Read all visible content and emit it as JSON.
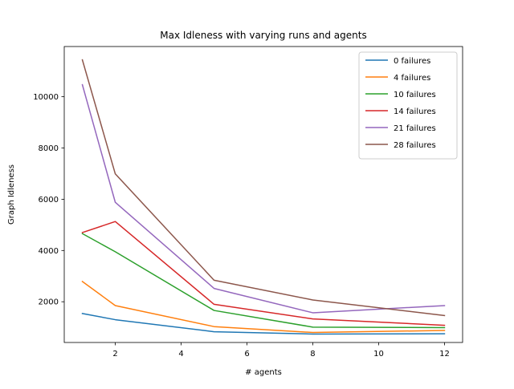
{
  "chart_data": {
    "type": "line",
    "title": "Max Idleness with varying runs and agents",
    "xlabel": "# agents",
    "ylabel": "Graph Idleness",
    "xlim": [
      0.45,
      12.55
    ],
    "ylim": [
      410,
      11960
    ],
    "x": [
      1,
      2,
      5,
      8,
      12
    ],
    "x_ticks": [
      2,
      4,
      6,
      8,
      10,
      12
    ],
    "y_ticks": [
      2000,
      4000,
      6000,
      8000,
      10000
    ],
    "grid": false,
    "legend_position": "upper right",
    "series": [
      {
        "name": "0 failures",
        "color": "#1f77b4",
        "values": [
          1540,
          1300,
          830,
          740,
          750
        ]
      },
      {
        "name": "4 failures",
        "color": "#ff7f0e",
        "values": [
          2790,
          1850,
          1030,
          800,
          880
        ]
      },
      {
        "name": "10 failures",
        "color": "#2ca02c",
        "values": [
          4660,
          3950,
          1660,
          1010,
          990
        ]
      },
      {
        "name": "14 failures",
        "color": "#d62728",
        "values": [
          4700,
          5130,
          1900,
          1330,
          1080
        ]
      },
      {
        "name": "21 failures",
        "color": "#9467bd",
        "values": [
          10470,
          5880,
          2520,
          1570,
          1850
        ]
      },
      {
        "name": "28 failures",
        "color": "#8c564b",
        "values": [
          11440,
          6990,
          2840,
          2070,
          1460
        ]
      }
    ]
  }
}
